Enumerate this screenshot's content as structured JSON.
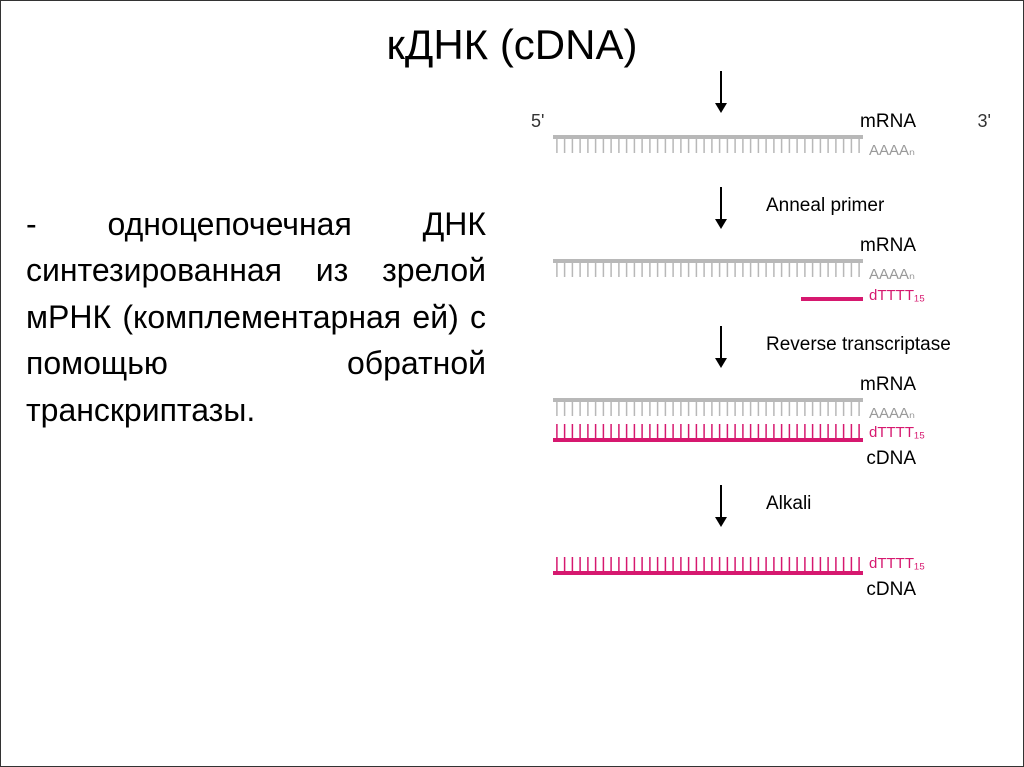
{
  "title": "кДНК (сDNA)",
  "description": "- одноцепочечная ДНК синтезированная из зрелой мРНК (комплементарная ей) с помощью обратной транскриптазы.",
  "colors": {
    "mrna_backbone": "#b8b8b8",
    "mrna_teeth": "#b8b8b8",
    "cdna": "#d6186f",
    "text": "#000000",
    "gray_label": "#999999",
    "background": "#ffffff"
  },
  "labels": {
    "five_prime": "5'",
    "three_prime": "3'",
    "mRNA": "mRNA",
    "cDNA": "cDNA",
    "polyA": "AAAAₙ",
    "polyT": "dTTTT₁₅"
  },
  "steps": [
    {
      "label": "Anneal primer"
    },
    {
      "label": "Reverse transcriptase"
    },
    {
      "label": "Alkali"
    }
  ],
  "diagram": {
    "strand_width": 310,
    "primer_width": 62,
    "teeth_count": 40,
    "teeth_height": 14,
    "backbone_thickness": 4,
    "arrow_height": 42
  }
}
